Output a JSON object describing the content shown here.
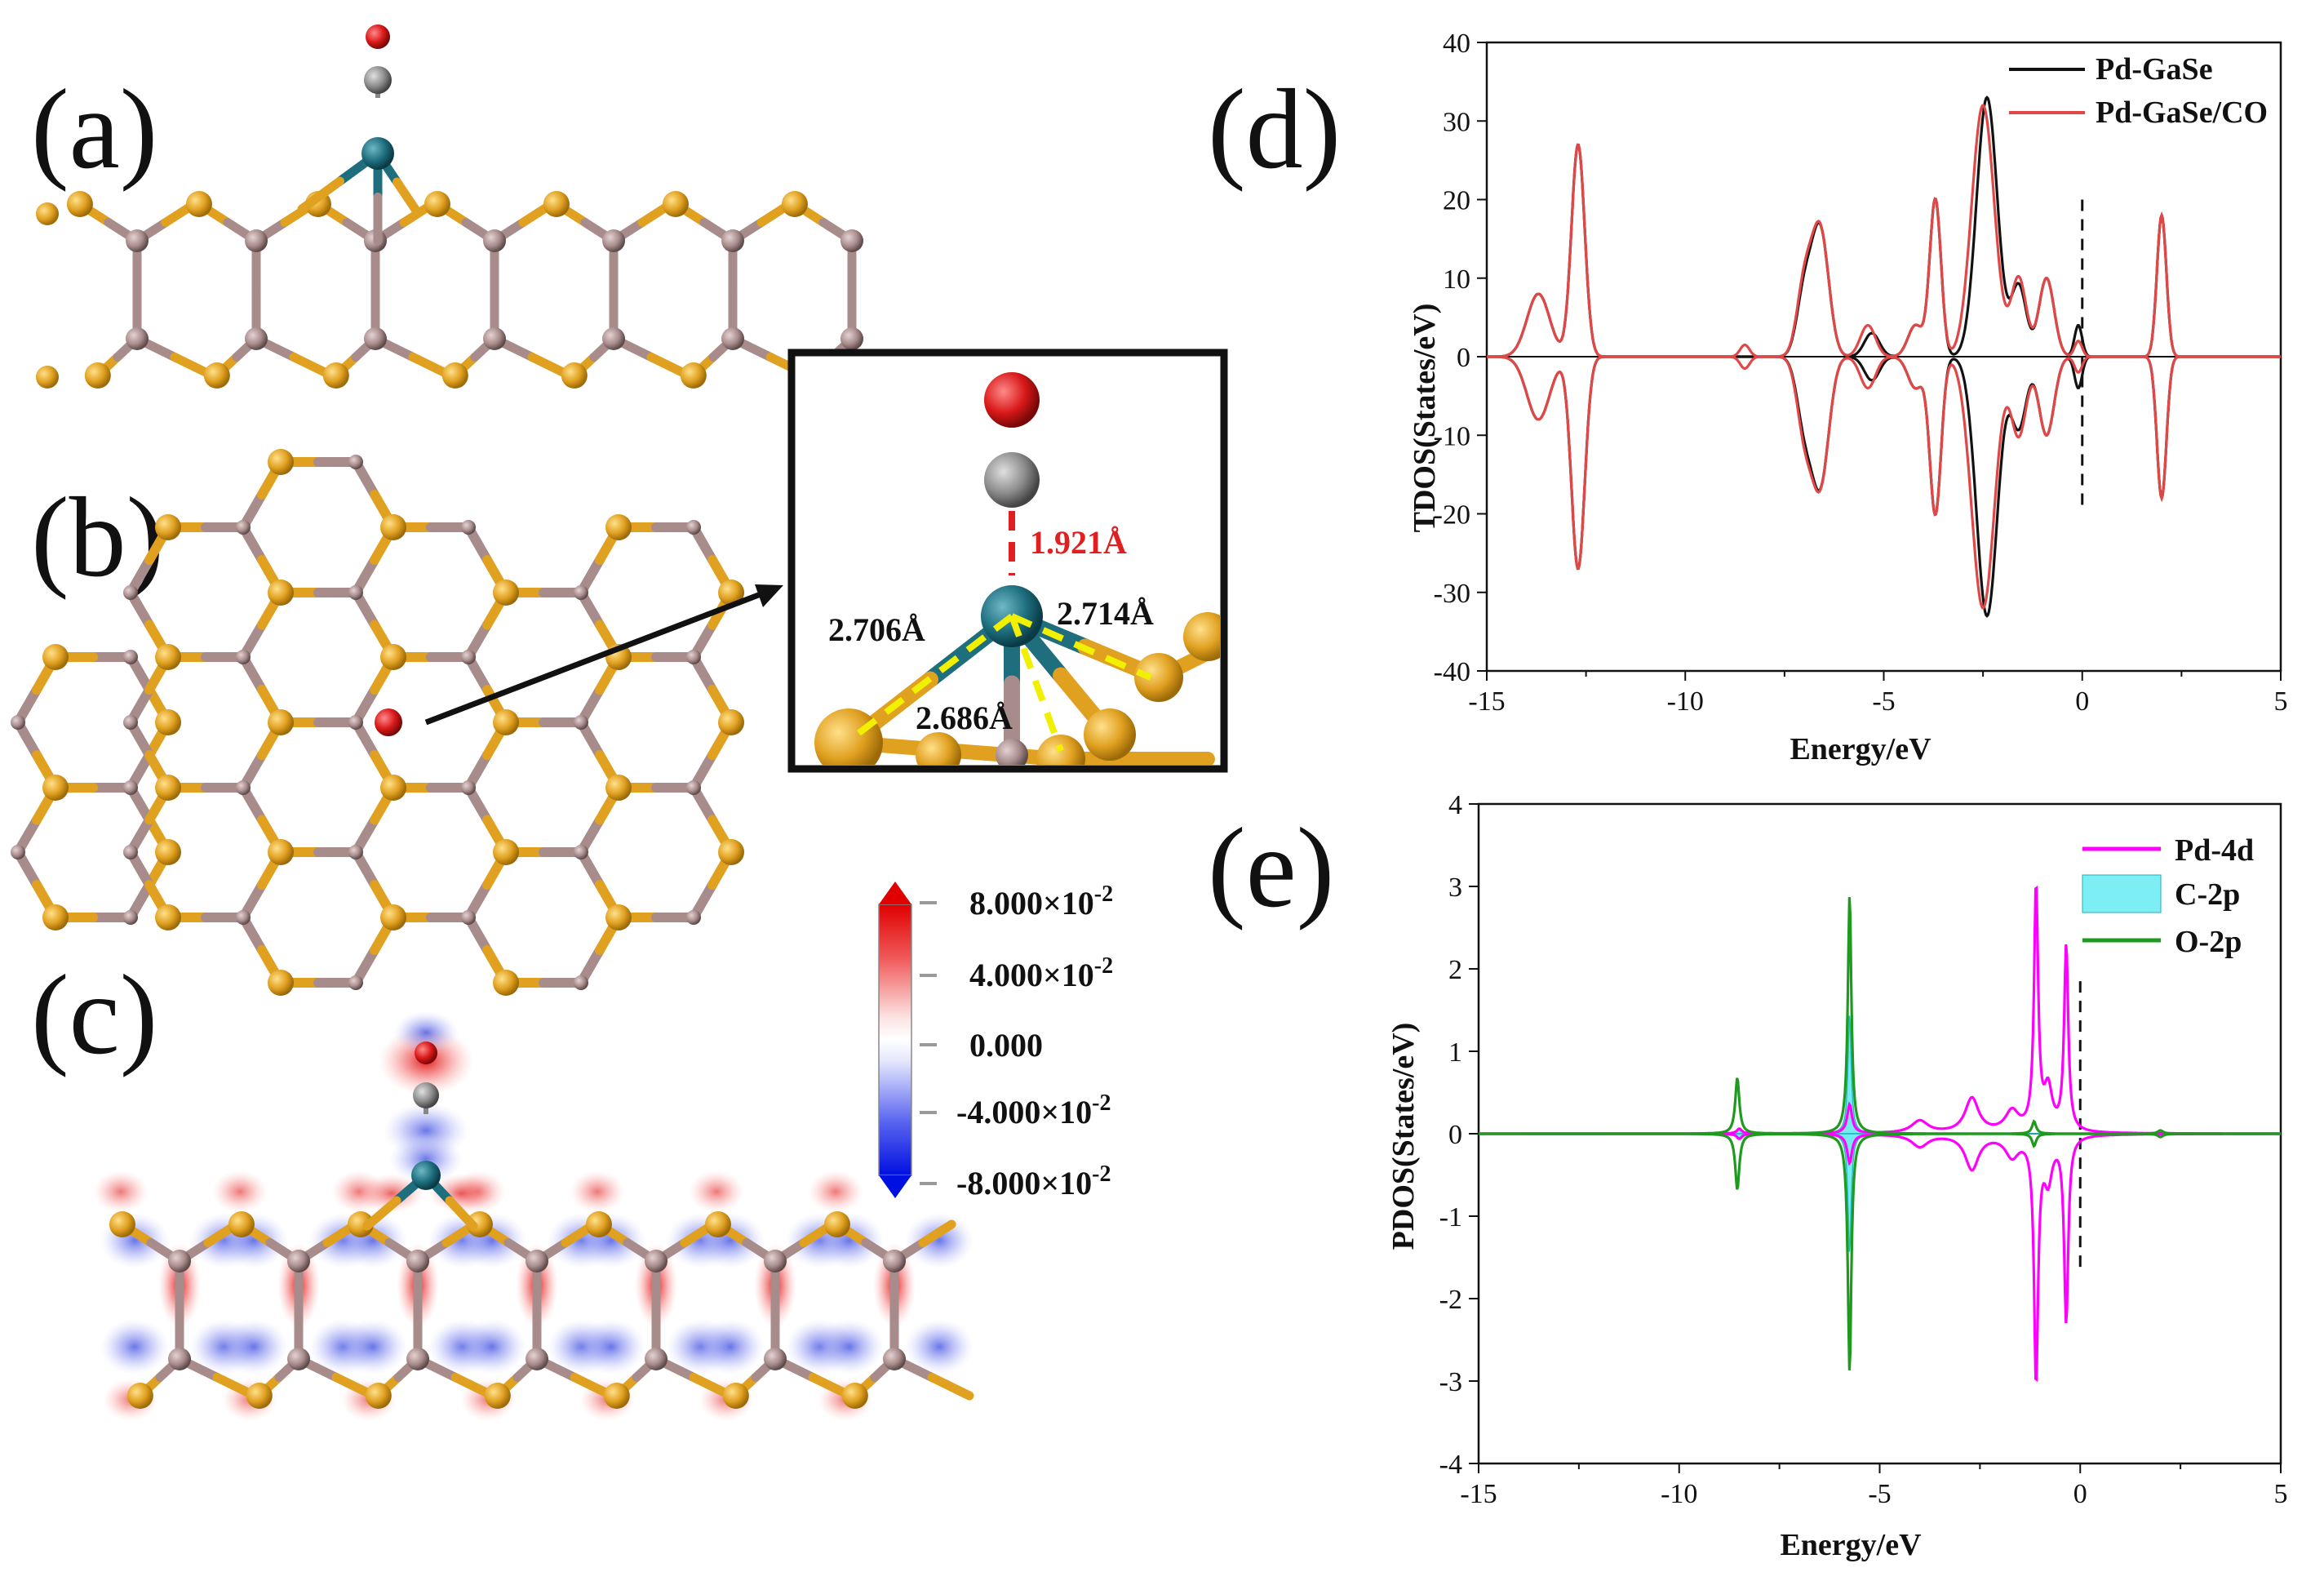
{
  "figure": {
    "panels": {
      "a": "(a)",
      "b": "(b)",
      "c": "(c)",
      "d": "(d)",
      "e": "(e)"
    },
    "inset_bonds": {
      "pd_c": "1.921Å",
      "pd_se1": "2.706Å",
      "pd_se2": "2.714Å",
      "pd_se3": "2.686Å"
    },
    "colorbar": {
      "max": "8.000×10",
      "max_exp": "-2",
      "upper": "4.000×10",
      "upper_exp": "-2",
      "mid": "0.000",
      "lower": "-4.000×10",
      "lower_exp": "-2",
      "min": "-8.000×10",
      "min_exp": "-2"
    },
    "colors": {
      "se": "#E0A020",
      "ga": "#A88C8C",
      "pd": "#1E6E7E",
      "o": "#D81818",
      "c": "#808080",
      "tdos_pdgase": "#111111",
      "tdos_pdgaseco": "#E04848",
      "pd4d": "#FF00FF",
      "c2p": "#5CEAF0",
      "o2p": "#1E9A1E"
    }
  },
  "chart_data": [
    {
      "id": "d",
      "type": "line",
      "xlabel": "Energy/eV",
      "ylabel": "TDOS(States/eV)",
      "xlim": [
        -15,
        5
      ],
      "ylim": [
        -40,
        40
      ],
      "xticks": [
        "-15",
        "-10",
        "-5",
        "0",
        "5"
      ],
      "yticks": [
        "-40",
        "-30",
        "-20",
        "-10",
        "0",
        "10",
        "20",
        "30",
        "40"
      ],
      "fermi_level": 0,
      "series": [
        {
          "name": "Pd-GaSe",
          "color": "#111111",
          "peaks": [
            {
              "center": -12.7,
              "width": 0.35,
              "height": 27
            },
            {
              "center": -13.7,
              "width": 0.6,
              "height": 8
            },
            {
              "center": -6.6,
              "width": 0.45,
              "height": 16
            },
            {
              "center": -7.0,
              "width": 0.4,
              "height": 8
            },
            {
              "center": -5.3,
              "width": 0.4,
              "height": 3
            },
            {
              "center": -3.7,
              "width": 0.3,
              "height": 20
            },
            {
              "center": -4.2,
              "width": 0.4,
              "height": 4
            },
            {
              "center": -2.4,
              "width": 0.55,
              "height": 33
            },
            {
              "center": -1.6,
              "width": 0.4,
              "height": 9
            },
            {
              "center": -0.9,
              "width": 0.4,
              "height": 10
            },
            {
              "center": -0.1,
              "width": 0.2,
              "height": 4
            },
            {
              "center": 2.0,
              "width": 0.25,
              "height": 18
            }
          ]
        },
        {
          "name": "Pd-GaSe/CO",
          "color": "#E04848",
          "peaks": [
            {
              "center": -12.7,
              "width": 0.35,
              "height": 27
            },
            {
              "center": -13.7,
              "width": 0.6,
              "height": 8
            },
            {
              "center": -8.5,
              "width": 0.25,
              "height": 1.5
            },
            {
              "center": -6.6,
              "width": 0.45,
              "height": 16
            },
            {
              "center": -7.0,
              "width": 0.4,
              "height": 9
            },
            {
              "center": -5.4,
              "width": 0.4,
              "height": 4
            },
            {
              "center": -3.7,
              "width": 0.3,
              "height": 20
            },
            {
              "center": -4.2,
              "width": 0.4,
              "height": 4
            },
            {
              "center": -2.5,
              "width": 0.6,
              "height": 32
            },
            {
              "center": -1.6,
              "width": 0.4,
              "height": 10
            },
            {
              "center": -0.9,
              "width": 0.4,
              "height": 10
            },
            {
              "center": -0.1,
              "width": 0.2,
              "height": 2
            },
            {
              "center": 2.0,
              "width": 0.25,
              "height": 18
            }
          ]
        }
      ]
    },
    {
      "id": "e",
      "type": "line",
      "xlabel": "Energy/eV",
      "ylabel": "PDOS(States/eV)",
      "xlim": [
        -15,
        5
      ],
      "ylim": [
        -4,
        4
      ],
      "xticks": [
        "-15",
        "-10",
        "-5",
        "0",
        "5"
      ],
      "yticks": [
        "-4",
        "-3",
        "-2",
        "-1",
        "0",
        "1",
        "2",
        "3",
        "4"
      ],
      "fermi_level": 0,
      "series": [
        {
          "name": "Pd-4d",
          "color": "#FF00FF",
          "peaks": [
            {
              "center": -8.5,
              "width": 0.18,
              "height": 0.06
            },
            {
              "center": -5.75,
              "width": 0.18,
              "height": 0.35
            },
            {
              "center": -4.0,
              "width": 0.6,
              "height": 0.15
            },
            {
              "center": -2.7,
              "width": 0.5,
              "height": 0.42
            },
            {
              "center": -1.7,
              "width": 0.5,
              "height": 0.25
            },
            {
              "center": -1.1,
              "width": 0.15,
              "height": 2.95
            },
            {
              "center": -0.35,
              "width": 0.15,
              "height": 2.25
            },
            {
              "center": -0.8,
              "width": 0.3,
              "height": 0.5
            }
          ]
        },
        {
          "name": "C-2p",
          "color": "#5CEAF0",
          "peaks": [
            {
              "center": -5.75,
              "width": 0.12,
              "height": 1.45
            },
            {
              "center": -8.5,
              "width": 0.15,
              "height": 0.05
            }
          ]
        },
        {
          "name": "O-2p",
          "color": "#1E9A1E",
          "peaks": [
            {
              "center": -8.55,
              "width": 0.15,
              "height": 0.68
            },
            {
              "center": -5.75,
              "width": 0.13,
              "height": 2.9
            },
            {
              "center": -1.15,
              "width": 0.15,
              "height": 0.15
            },
            {
              "center": 2.0,
              "width": 0.2,
              "height": 0.04
            }
          ]
        }
      ]
    }
  ]
}
